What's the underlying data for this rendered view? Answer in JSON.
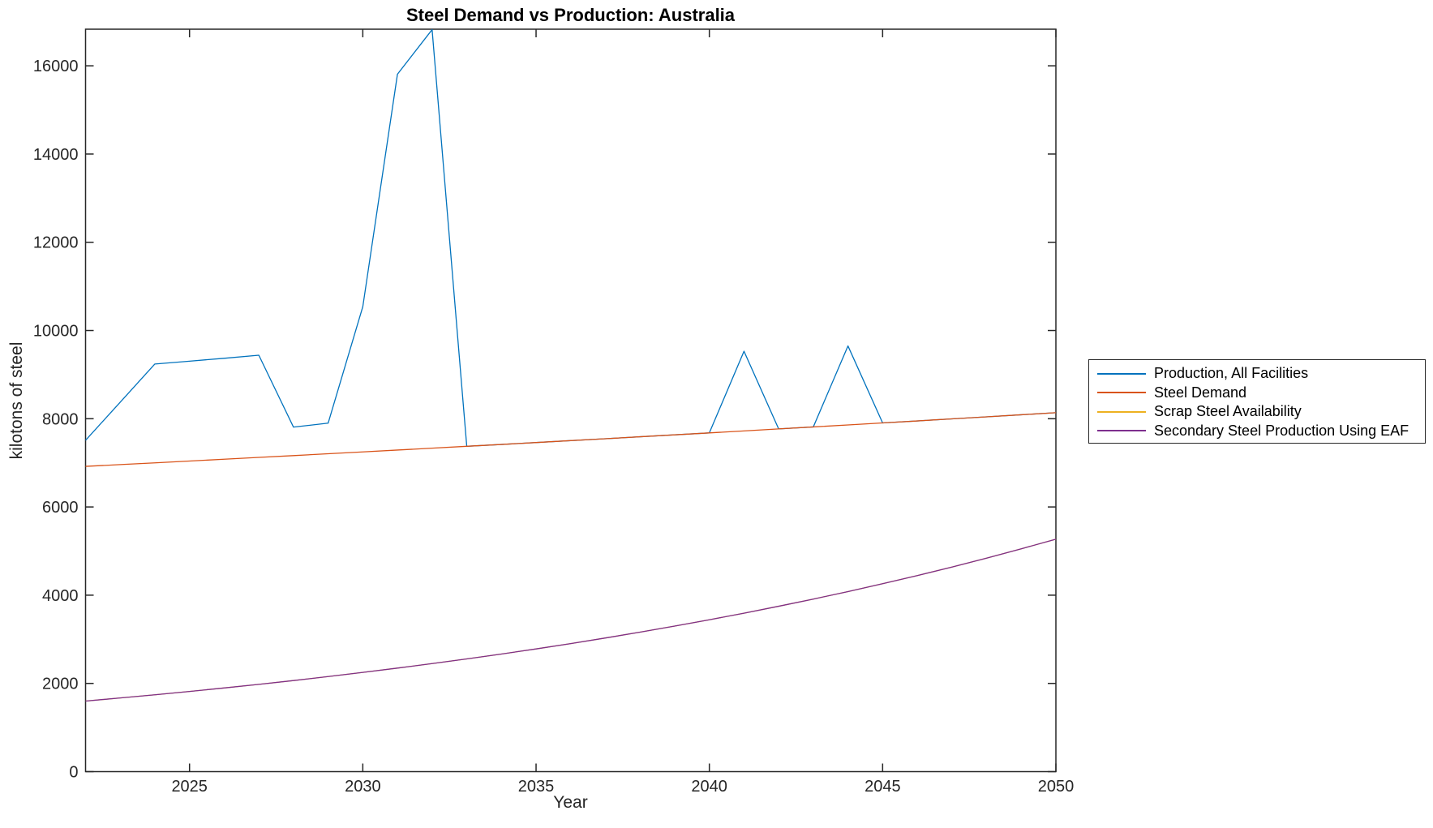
{
  "chart_data": {
    "type": "line",
    "title": "Steel Demand vs Production: Australia",
    "xlabel": "Year",
    "ylabel": "kilotons of steel",
    "xlim": [
      2022,
      2050
    ],
    "ylim": [
      0,
      16830
    ],
    "xticks": [
      2025,
      2030,
      2035,
      2040,
      2045,
      2050
    ],
    "yticks": [
      0,
      2000,
      4000,
      6000,
      8000,
      10000,
      12000,
      14000,
      16000
    ],
    "grid": false,
    "legend_position": "right-outside",
    "axis_color": "#262626",
    "x": [
      2022,
      2023,
      2024,
      2025,
      2026,
      2027,
      2028,
      2029,
      2030,
      2031,
      2032,
      2033,
      2034,
      2035,
      2036,
      2037,
      2038,
      2039,
      2040,
      2041,
      2042,
      2043,
      2044,
      2045,
      2046,
      2047,
      2048,
      2049,
      2050
    ],
    "series": [
      {
        "name": "Production, All Facilities",
        "color": "#0072BD",
        "values": [
          7510,
          8375,
          9240,
          9305,
          9370,
          9440,
          7810,
          7900,
          10540,
          15810,
          16820,
          7375,
          7417,
          7460,
          7504,
          7547,
          7591,
          7635,
          7679,
          9530,
          7769,
          7814,
          9650,
          7905,
          7950,
          7997,
          8043,
          8090,
          8137
        ]
      },
      {
        "name": "Steel Demand",
        "color": "#D95319",
        "values": [
          6920,
          6960,
          7000,
          7041,
          7082,
          7123,
          7164,
          7206,
          7248,
          7290,
          7332,
          7375,
          7417,
          7460,
          7504,
          7547,
          7591,
          7635,
          7679,
          7724,
          7769,
          7814,
          7859,
          7905,
          7950,
          7997,
          8043,
          8090,
          8137
        ]
      },
      {
        "name": "Scrap Steel Availability",
        "color": "#EDB120",
        "values": [
          1600,
          1670,
          1742,
          1818,
          1897,
          1979,
          2065,
          2155,
          2249,
          2347,
          2449,
          2555,
          2666,
          2782,
          2903,
          3030,
          3162,
          3299,
          3443,
          3592,
          3749,
          3912,
          4082,
          4260,
          4445,
          4638,
          4840,
          5051,
          5270
        ]
      },
      {
        "name": "Secondary Steel Production Using EAF",
        "color": "#7E2F8E",
        "values": [
          1600,
          1670,
          1742,
          1818,
          1897,
          1979,
          2065,
          2155,
          2249,
          2347,
          2449,
          2555,
          2666,
          2782,
          2903,
          3030,
          3162,
          3299,
          3443,
          3592,
          3749,
          3912,
          4082,
          4260,
          4445,
          4638,
          4840,
          5051,
          5270
        ]
      }
    ]
  }
}
